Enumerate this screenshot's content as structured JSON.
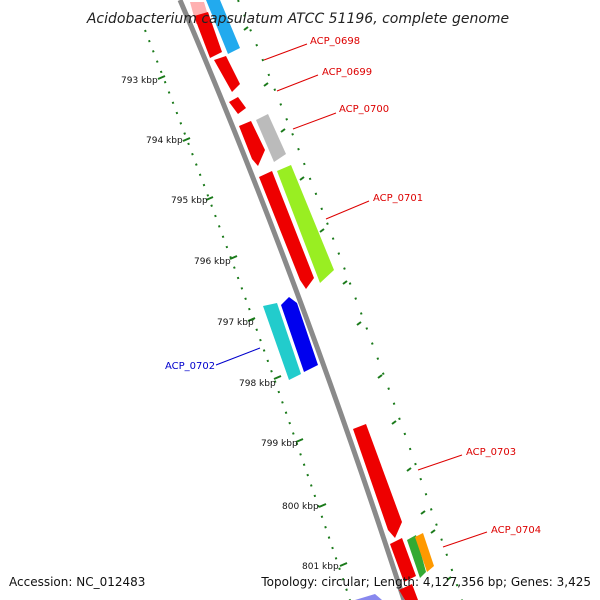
{
  "title": "Acidobacterium capsulatum ATCC 51196, complete genome",
  "footer": {
    "accession": "Accession: NC_012483",
    "summary": "Topology: circular; Length: 4,127,356 bp; Genes: 3,425"
  },
  "ruler": {
    "ticks": [
      "793 kbp",
      "794 kbp",
      "795 kbp",
      "796 kbp",
      "797 kbp",
      "798 kbp",
      "799 kbp",
      "800 kbp",
      "801 kbp"
    ],
    "color": "#1a7a1a"
  },
  "genes": [
    {
      "label": "ACP_0698",
      "color": "#cc0000"
    },
    {
      "label": "ACP_0699",
      "color": "#cc0000"
    },
    {
      "label": "ACP_0700",
      "color": "#cc0000"
    },
    {
      "label": "ACP_0701",
      "color": "#cc0000"
    },
    {
      "label": "ACP_0702",
      "color": "#0000cc"
    },
    {
      "label": "ACP_0703",
      "color": "#cc0000"
    },
    {
      "label": "ACP_0704",
      "color": "#cc0000"
    }
  ],
  "colors": {
    "backbone": "#888888",
    "red_cds": "#ff0000",
    "blue_cds": "#0000ee",
    "cyan_cds": "#22cccc",
    "lime_cds": "#99ee22",
    "gray_cds": "#bbbbbb",
    "skyblue_cds": "#22aaee",
    "pink_cds": "#ffaaaa"
  }
}
